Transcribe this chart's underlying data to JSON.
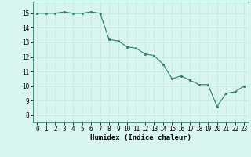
{
  "x": [
    0,
    1,
    2,
    3,
    4,
    5,
    6,
    7,
    8,
    9,
    10,
    11,
    12,
    13,
    14,
    15,
    16,
    17,
    18,
    19,
    20,
    21,
    22,
    23
  ],
  "y": [
    15.0,
    15.0,
    15.0,
    15.1,
    15.0,
    15.0,
    15.1,
    15.0,
    13.2,
    13.1,
    12.7,
    12.6,
    12.2,
    12.1,
    11.5,
    10.5,
    10.7,
    10.4,
    10.1,
    10.1,
    8.6,
    9.5,
    9.6,
    10.0
  ],
  "xlabel": "Humidex (Indice chaleur)",
  "xlim": [
    -0.5,
    23.5
  ],
  "ylim": [
    7.5,
    15.8
  ],
  "yticks": [
    8,
    9,
    10,
    11,
    12,
    13,
    14,
    15
  ],
  "xticks": [
    0,
    1,
    2,
    3,
    4,
    5,
    6,
    7,
    8,
    9,
    10,
    11,
    12,
    13,
    14,
    15,
    16,
    17,
    18,
    19,
    20,
    21,
    22,
    23
  ],
  "line_color": "#2d7d6e",
  "marker_color": "#2d7d6e",
  "bg_color": "#d8f5f0",
  "grid_color": "#c8e8e0",
  "label_fontsize": 6.5,
  "tick_fontsize": 5.5
}
